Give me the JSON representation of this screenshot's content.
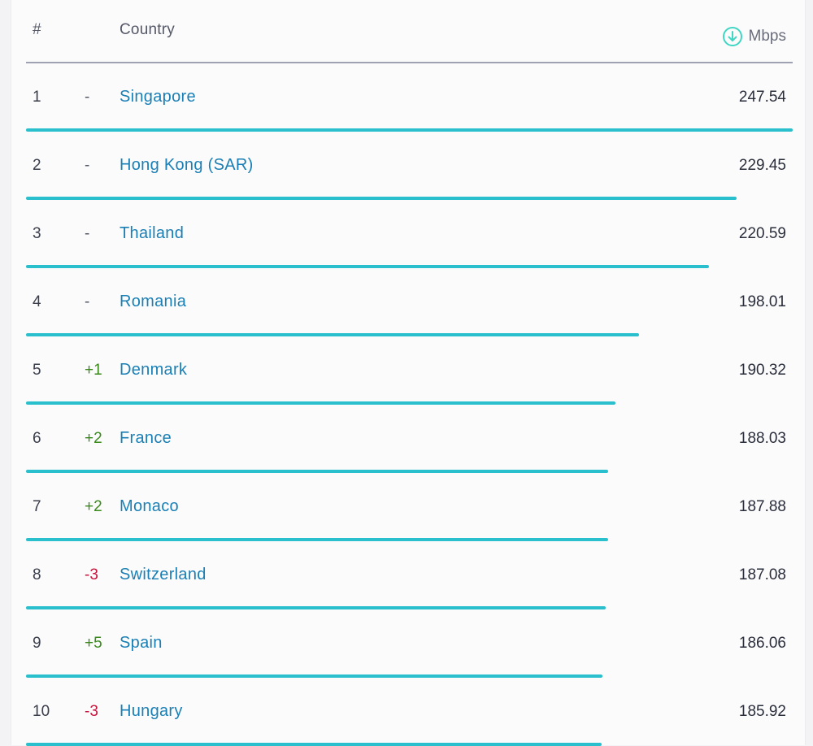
{
  "header": {
    "rank_label": "#",
    "country_label": "Country",
    "speed_unit": "Mbps",
    "speed_icon": "download-circle-icon"
  },
  "colors": {
    "bar": "#29bfcd",
    "country_link": "#1a7fb5",
    "change_up": "#3a8a1a",
    "change_down": "#c8143c",
    "icon": "#3fd6c4"
  },
  "rows": [
    {
      "rank": "1",
      "change": "-",
      "country": "Singapore",
      "speed": "247.54",
      "value": 247.54
    },
    {
      "rank": "2",
      "change": "-",
      "country": "Hong Kong (SAR)",
      "speed": "229.45",
      "value": 229.45
    },
    {
      "rank": "3",
      "change": "-",
      "country": "Thailand",
      "speed": "220.59",
      "value": 220.59
    },
    {
      "rank": "4",
      "change": "-",
      "country": "Romania",
      "speed": "198.01",
      "value": 198.01
    },
    {
      "rank": "5",
      "change": "+1",
      "country": "Denmark",
      "speed": "190.32",
      "value": 190.32
    },
    {
      "rank": "6",
      "change": "+2",
      "country": "France",
      "speed": "188.03",
      "value": 188.03
    },
    {
      "rank": "7",
      "change": "+2",
      "country": "Monaco",
      "speed": "187.88",
      "value": 187.88
    },
    {
      "rank": "8",
      "change": "-3",
      "country": "Switzerland",
      "speed": "187.08",
      "value": 187.08
    },
    {
      "rank": "9",
      "change": "+5",
      "country": "Spain",
      "speed": "186.06",
      "value": 186.06
    },
    {
      "rank": "10",
      "change": "-3",
      "country": "Hungary",
      "speed": "185.92",
      "value": 185.92
    }
  ]
}
